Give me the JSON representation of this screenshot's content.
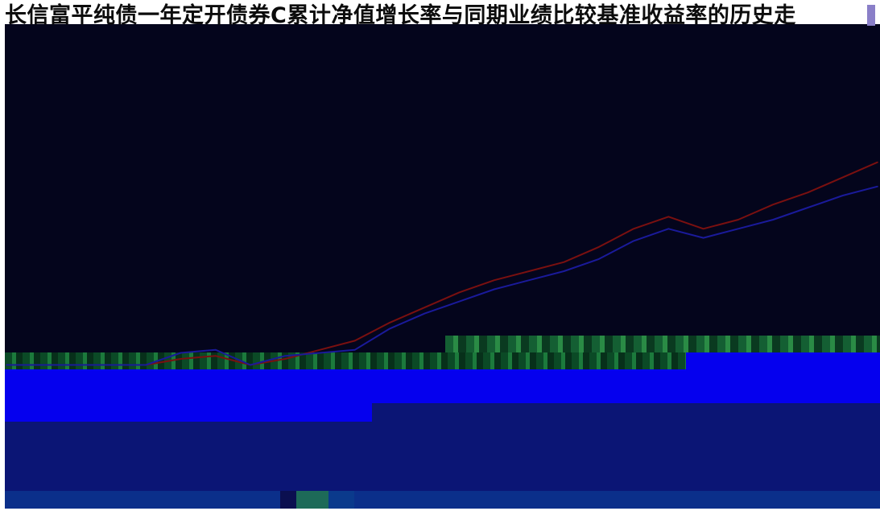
{
  "title": "长信富平纯债一年定开债券C累计净值增长率与同期业绩比较基准收益率的历史走",
  "colors": {
    "plot_background": "#04051c",
    "fund_series": "#7a1010",
    "benchmark_series": "#1a1a9a",
    "band_blue": "#0500ee",
    "band_navy": "#0b1575",
    "band_green": "#1c7a3c"
  },
  "chart_data": {
    "type": "line",
    "title": "长信富平纯债一年定开债券C累计净值增长率与同期业绩比较基准收益率的历史走",
    "xlabel": "",
    "ylabel": "",
    "grid": false,
    "x": [
      0,
      4,
      8,
      12,
      16,
      20,
      24,
      28,
      32,
      36,
      40,
      44,
      48,
      52,
      56,
      60,
      64,
      68,
      72,
      76,
      80,
      84,
      88,
      92,
      96,
      100
    ],
    "xlim": [
      0,
      100
    ],
    "ylim": [
      0,
      100
    ],
    "series": [
      {
        "values": [
          -2,
          -2,
          -2,
          -2,
          -2,
          0,
          1,
          -2,
          0,
          3,
          6,
          12,
          17,
          22,
          26,
          29,
          32,
          37,
          43,
          47,
          43,
          46,
          51,
          55,
          60,
          65
        ],
        "color": "#7a1010"
      },
      {
        "values": [
          -2,
          -2,
          -2,
          -2,
          -2,
          2,
          3,
          -2,
          1,
          2,
          3,
          10,
          15,
          19,
          23,
          26,
          29,
          33,
          39,
          43,
          40,
          43,
          46,
          50,
          54,
          57
        ],
        "color": "#1a1a9a"
      }
    ]
  }
}
